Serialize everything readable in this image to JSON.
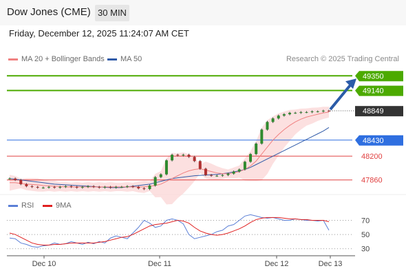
{
  "header": {
    "title": "Dow Jones (CME)",
    "interval": "30 MIN"
  },
  "timestamp": "Friday, December 12, 2025 11:24:07 AM CET",
  "legend": [
    {
      "label": "MA 20 + Bollinger Bands",
      "color": "#f08080"
    },
    {
      "label": "MA 50",
      "color": "#2f5aa8"
    }
  ],
  "credit": "Research © 2025 Trading Central",
  "rsi_legend": [
    {
      "label": "RSI",
      "color": "#5b7fd6"
    },
    {
      "label": "9MA",
      "color": "#e02020"
    }
  ],
  "chart_data": {
    "type": "candlestick",
    "x_labels": [
      "Dec 10",
      "Dec 11",
      "Dec 12",
      "Dec 13"
    ],
    "current_price": "48849",
    "levels": [
      {
        "value": "49350",
        "kind": "resistance",
        "color": "#4caa00"
      },
      {
        "value": "49140",
        "kind": "resistance",
        "color": "#4caa00"
      },
      {
        "value": "48849",
        "kind": "current",
        "color": "#333333"
      },
      {
        "value": "48430",
        "kind": "pivot",
        "color": "#2f6fe0"
      },
      {
        "value": "48200",
        "kind": "support",
        "color": "#e04040"
      },
      {
        "value": "47860",
        "kind": "support",
        "color": "#e04040"
      }
    ],
    "price_series": [
      47880,
      47860,
      47800,
      47770,
      47760,
      47750,
      47750,
      47760,
      47750,
      47760,
      47770,
      47760,
      47750,
      47760,
      47770,
      47760,
      47750,
      47760,
      47750,
      47760,
      47760,
      47770,
      47760,
      47740,
      47730,
      47780,
      47900,
      47940,
      48140,
      48220,
      48210,
      48220,
      48190,
      48130,
      48020,
      47930,
      47920,
      47920,
      47930,
      47950,
      47980,
      48010,
      48120,
      48230,
      48380,
      48580,
      48690,
      48740,
      48780,
      48800,
      48820,
      48820,
      48830,
      48830,
      48840,
      48840,
      48850,
      48849
    ],
    "ma20": [
      47820,
      47820,
      47810,
      47800,
      47795,
      47790,
      47780,
      47775,
      47770,
      47765,
      47760,
      47760,
      47760,
      47760,
      47760,
      47760,
      47760,
      47760,
      47760,
      47760,
      47760,
      47760,
      47760,
      47760,
      47760,
      47770,
      47780,
      47800,
      47840,
      47880,
      47920,
      47960,
      47990,
      48010,
      48020,
      48000,
      47980,
      47960,
      47950,
      47950,
      47960,
      47980,
      48010,
      48060,
      48130,
      48230,
      48330,
      48430,
      48510,
      48580,
      48640,
      48690,
      48730,
      48760,
      48780,
      48800,
      48820,
      48830
    ],
    "ma50": [
      47880,
      47870,
      47860,
      47850,
      47840,
      47830,
      47820,
      47810,
      47800,
      47795,
      47790,
      47785,
      47780,
      47775,
      47770,
      47765,
      47760,
      47755,
      47750,
      47750,
      47750,
      47760,
      47770,
      47780,
      47790,
      47800,
      47820,
      47840,
      47860,
      47880,
      47890,
      47900,
      47910,
      47920,
      47925,
      47930,
      47935,
      47940,
      47950,
      47960,
      47975,
      47990,
      48010,
      48040,
      48080,
      48120,
      48160,
      48200,
      48240,
      48280,
      48320,
      48360,
      48400,
      48440,
      48480,
      48520,
      48560,
      48610
    ],
    "rsi": [
      45,
      44,
      38,
      36,
      33,
      32,
      34,
      35,
      38,
      36,
      37,
      40,
      38,
      36,
      39,
      37,
      40,
      38,
      45,
      48,
      46,
      44,
      52,
      60,
      70,
      66,
      60,
      62,
      70,
      72,
      70,
      65,
      50,
      44,
      46,
      48,
      50,
      54,
      56,
      62,
      64,
      70,
      76,
      78,
      76,
      74,
      73,
      74,
      72,
      70,
      70,
      72,
      71,
      70,
      70,
      69,
      70,
      56
    ],
    "rsi_ma": [
      52,
      50,
      46,
      42,
      38,
      36,
      35,
      35,
      36,
      36,
      37,
      38,
      38,
      38,
      38,
      38,
      39,
      40,
      42,
      44,
      46,
      47,
      50,
      54,
      58,
      62,
      64,
      65,
      66,
      68,
      70,
      69,
      66,
      60,
      55,
      52,
      50,
      49,
      50,
      52,
      55,
      58,
      62,
      67,
      71,
      73,
      74,
      74,
      74,
      73,
      72,
      72,
      71,
      71,
      70,
      70,
      70,
      68
    ],
    "rsi_levels": [
      70,
      50,
      30
    ],
    "price_ylim": [
      47700,
      49500
    ],
    "rsi_ylim": [
      20,
      85
    ]
  }
}
